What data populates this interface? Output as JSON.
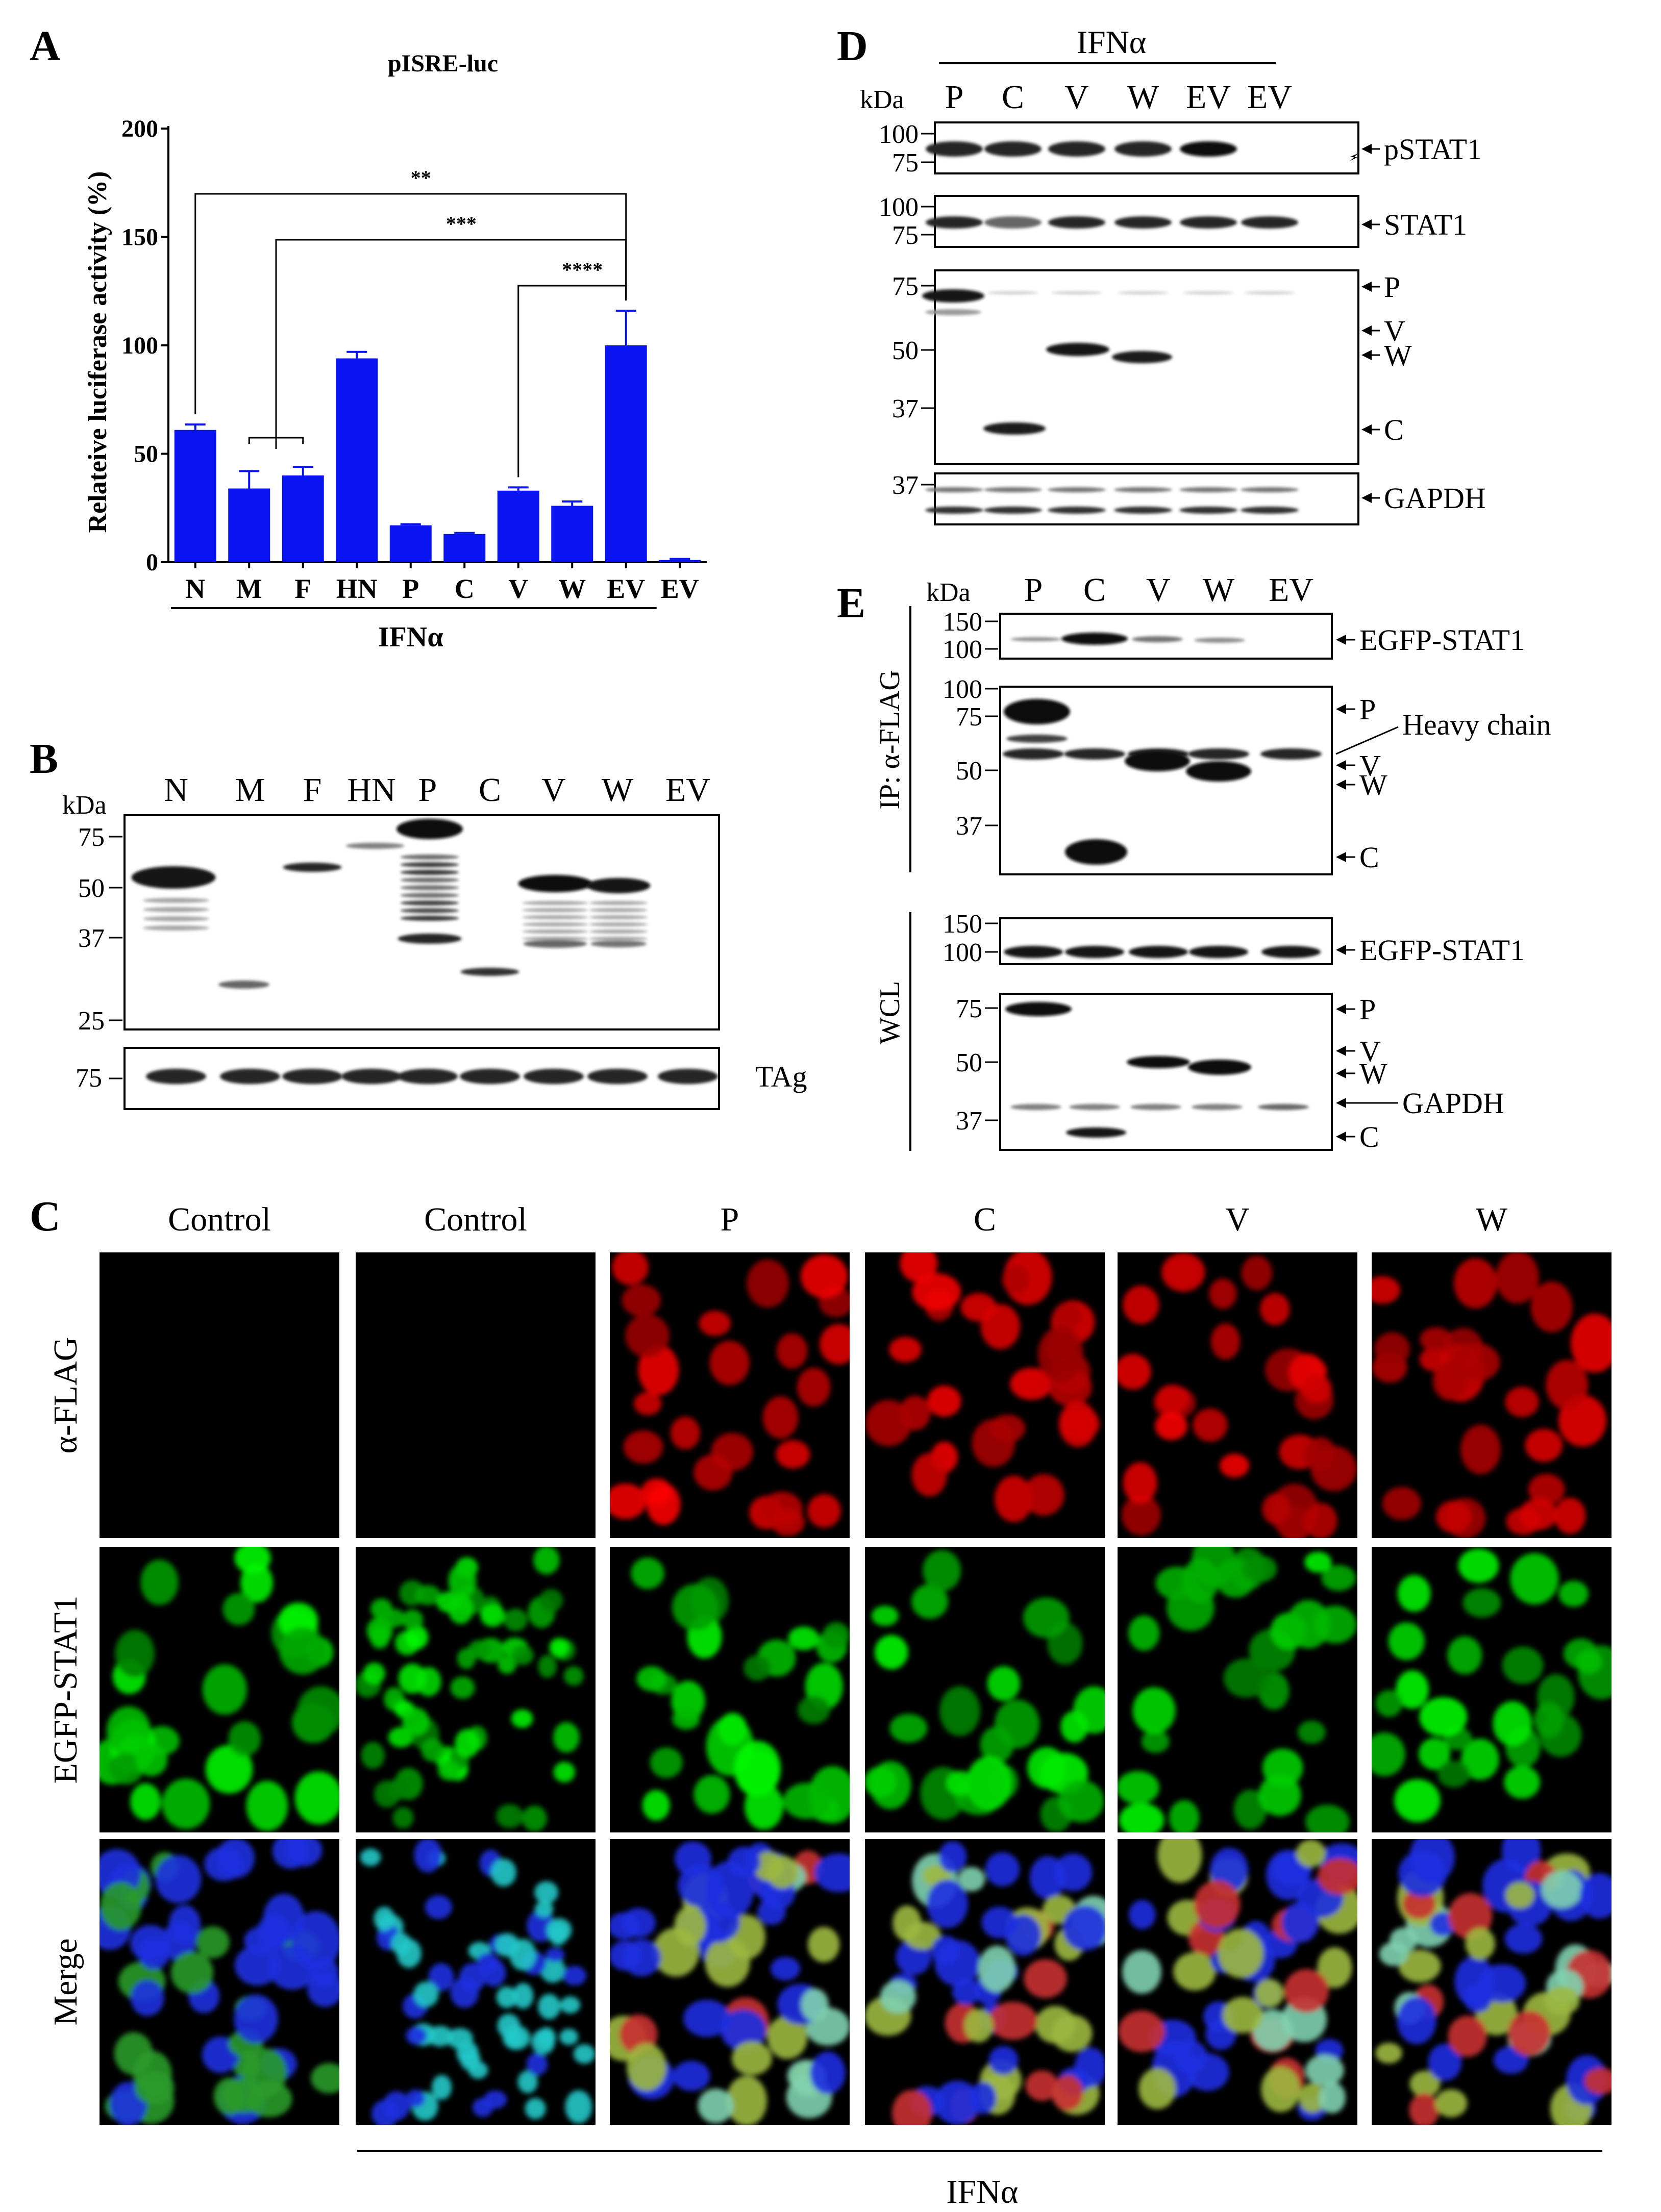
{
  "panel_A": {
    "letter": "A",
    "title": "pISRE-luc",
    "chart_data": {
      "type": "bar",
      "title": "pISRE-luc",
      "ylabel": "Relateive luciferase activity (%)",
      "xlabel": "IFNα",
      "categories": [
        "N",
        "M",
        "F",
        "HN",
        "P",
        "C",
        "V",
        "W",
        "EV",
        "EV"
      ],
      "values": [
        61,
        34,
        40,
        94,
        17,
        13,
        33,
        26,
        100,
        1
      ],
      "errors": [
        2.5,
        8,
        4,
        3,
        0.5,
        0.5,
        1.5,
        2,
        16,
        0.5
      ],
      "ylim": [
        0,
        200
      ],
      "yticks": [
        0,
        50,
        100,
        150,
        200
      ],
      "bar_color": "#0a14f0",
      "ifn_group_label": "IFNα",
      "significance": [
        {
          "label": "**",
          "from": "N",
          "to": "EV"
        },
        {
          "label": "***",
          "from": "M–F",
          "to": "EV"
        },
        {
          "label": "****",
          "from": "V–W",
          "to": "EV"
        }
      ]
    }
  },
  "panel_B": {
    "letter": "B",
    "kda": "kDa",
    "lanes": [
      "N",
      "M",
      "F",
      "HN",
      "P",
      "C",
      "V",
      "W",
      "EV"
    ],
    "markers": [
      "75",
      "50",
      "37",
      "25"
    ],
    "loading_marker": "75",
    "loading_label": "TAg"
  },
  "panel_C": {
    "letter": "C",
    "columns": [
      "Control",
      "Control",
      "P",
      "C",
      "V",
      "W"
    ],
    "rows": [
      "α-FLAG",
      "EGFP-STAT1",
      "Merge"
    ],
    "ifn_label": "IFNα"
  },
  "panel_D": {
    "letter": "D",
    "ifn_label": "IFNα",
    "kda": "kDa",
    "lanes": [
      "P",
      "C",
      "V",
      "W",
      "EV",
      "EV"
    ],
    "blots": [
      {
        "markers": [
          "100",
          "75"
        ],
        "label": "pSTAT1"
      },
      {
        "markers": [
          "100",
          "75"
        ],
        "label": "STAT1"
      },
      {
        "markers": [
          "75",
          "50",
          "37"
        ],
        "labels": [
          "P",
          "V",
          "W",
          "C"
        ]
      },
      {
        "markers": [
          "37"
        ],
        "label": "GAPDH"
      }
    ]
  },
  "panel_E": {
    "letter": "E",
    "kda": "kDa",
    "lanes": [
      "P",
      "C",
      "V",
      "W",
      "EV"
    ],
    "ip_label": "IP: α-FLAG",
    "wcl_label": "WCL",
    "ip_blot1": {
      "markers": [
        "150",
        "100"
      ],
      "label": "EGFP-STAT1"
    },
    "ip_blot2": {
      "markers": [
        "100",
        "75",
        "50",
        "37"
      ],
      "labels": [
        "P",
        "Heavy chain",
        "V",
        "W",
        "C"
      ]
    },
    "wcl_blot1": {
      "markers": [
        "150",
        "100"
      ],
      "label": "EGFP-STAT1"
    },
    "wcl_blot2": {
      "markers": [
        "75",
        "50",
        "37"
      ],
      "labels": [
        "P",
        "V",
        "W",
        "GAPDH",
        "C"
      ]
    }
  }
}
